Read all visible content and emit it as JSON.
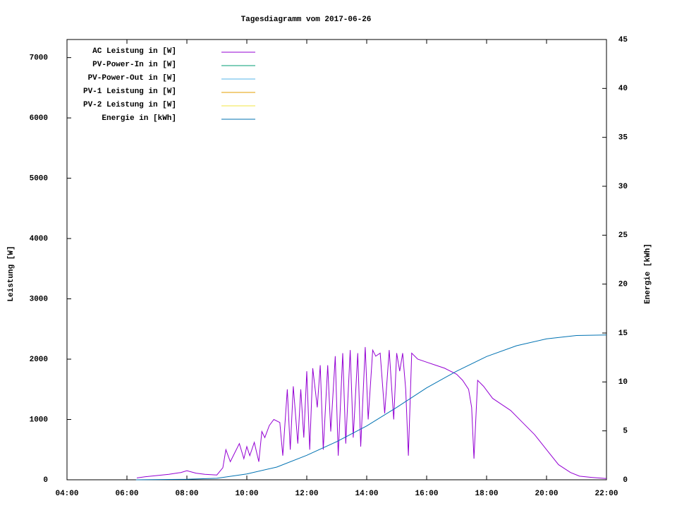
{
  "chart_data": {
    "type": "line",
    "title": "Tagesdiagramm vom 2017-06-26",
    "ylabel": "Leistung [W]",
    "y2label": "Energie [kWh]",
    "xlim": [
      4,
      22
    ],
    "xticks": [
      {
        "value": 4,
        "label": "04:00"
      },
      {
        "value": 6,
        "label": "06:00"
      },
      {
        "value": 8,
        "label": "08:00"
      },
      {
        "value": 10,
        "label": "10:00"
      },
      {
        "value": 12,
        "label": "12:00"
      },
      {
        "value": 14,
        "label": "14:00"
      },
      {
        "value": 16,
        "label": "16:00"
      },
      {
        "value": 18,
        "label": "18:00"
      },
      {
        "value": 20,
        "label": "20:00"
      },
      {
        "value": 22,
        "label": "22:00"
      }
    ],
    "ylim": [
      0,
      7300
    ],
    "yticks": [
      0,
      1000,
      2000,
      3000,
      4000,
      5000,
      6000,
      7000
    ],
    "y2lim": [
      0,
      45
    ],
    "y2ticks": [
      0,
      5,
      10,
      15,
      20,
      25,
      30,
      35,
      40,
      45
    ],
    "legend": "top-left",
    "series": [
      {
        "name": "AC Leistung in [W]",
        "color": "#9400d3",
        "x": [
          6.33,
          6.6,
          7.0,
          7.4,
          7.8,
          8.0,
          8.3,
          8.6,
          9.0,
          9.2,
          9.3,
          9.45,
          9.6,
          9.75,
          9.9,
          10.0,
          10.1,
          10.25,
          10.4,
          10.5,
          10.6,
          10.75,
          10.9,
          11.1,
          11.2,
          11.35,
          11.45,
          11.55,
          11.7,
          11.8,
          11.9,
          12.0,
          12.1,
          12.2,
          12.35,
          12.45,
          12.55,
          12.7,
          12.8,
          12.95,
          13.05,
          13.2,
          13.3,
          13.45,
          13.55,
          13.7,
          13.8,
          13.95,
          14.05,
          14.2,
          14.3,
          14.45,
          14.6,
          14.75,
          14.9,
          15.0,
          15.1,
          15.2,
          15.3,
          15.39,
          15.5,
          15.7,
          16.0,
          16.3,
          16.6,
          17.0,
          17.2,
          17.4,
          17.5,
          17.58,
          17.7,
          17.9,
          18.2,
          18.5,
          18.8,
          19.2,
          19.6,
          20.0,
          20.4,
          20.8,
          21.1,
          21.5,
          22.0
        ],
        "values": [
          30,
          50,
          70,
          90,
          120,
          150,
          110,
          90,
          80,
          200,
          500,
          300,
          450,
          600,
          350,
          550,
          400,
          620,
          300,
          800,
          700,
          900,
          1000,
          950,
          400,
          1500,
          500,
          1550,
          600,
          1500,
          700,
          1800,
          500,
          1850,
          1200,
          1900,
          500,
          1900,
          800,
          2050,
          400,
          2100,
          600,
          2150,
          700,
          2100,
          550,
          2200,
          1000,
          2150,
          2050,
          2100,
          1100,
          2150,
          1000,
          2100,
          1800,
          2100,
          1500,
          400,
          2100,
          2000,
          1950,
          1900,
          1850,
          1750,
          1650,
          1500,
          1200,
          350,
          1650,
          1550,
          1350,
          1250,
          1150,
          950,
          750,
          500,
          250,
          120,
          60,
          40,
          20
        ]
      },
      {
        "name": "PV-Power-In in [W]",
        "color": "#009e73",
        "x": [],
        "values": []
      },
      {
        "name": "PV-Power-Out in [W]",
        "color": "#56b4e9",
        "x": [],
        "values": []
      },
      {
        "name": "PV-1 Leistung in [W]",
        "color": "#e69f00",
        "x": [],
        "values": []
      },
      {
        "name": "PV-2 Leistung in [W]",
        "color": "#f0e442",
        "x": [],
        "values": []
      },
      {
        "name": "Energie in [kWh]",
        "color": "#0072b2",
        "axis": "y2",
        "x": [
          6.3,
          8.0,
          9.0,
          10.0,
          11.0,
          12.0,
          13.0,
          14.0,
          15.0,
          16.0,
          17.0,
          18.0,
          19.0,
          20.0,
          21.0,
          22.0
        ],
        "values": [
          0,
          0.05,
          0.15,
          0.6,
          1.3,
          2.5,
          3.9,
          5.5,
          7.4,
          9.4,
          11.1,
          12.6,
          13.7,
          14.4,
          14.75,
          14.8
        ]
      }
    ]
  }
}
